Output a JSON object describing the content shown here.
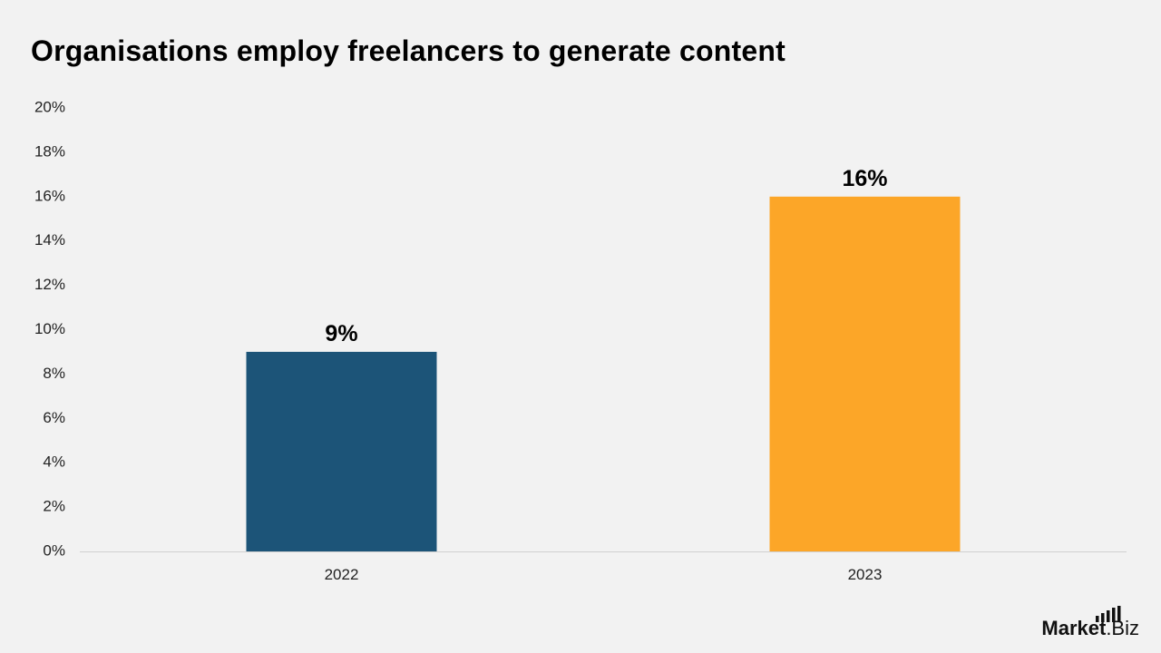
{
  "chart_data": {
    "type": "bar",
    "title": "Organisations employ freelancers to generate content",
    "categories": [
      "2022",
      "2023"
    ],
    "values": [
      9,
      16
    ],
    "data_labels": [
      "9%",
      "16%"
    ],
    "bar_colors": [
      "#1c5478",
      "#fca628"
    ],
    "ylim": [
      0,
      20
    ],
    "yticks": [
      0,
      2,
      4,
      6,
      8,
      10,
      12,
      14,
      16,
      18,
      20
    ],
    "ytick_suffix": "%",
    "xlabel": "",
    "ylabel": "",
    "grid": false
  },
  "branding": {
    "logo_bold": "Market",
    "logo_regular": ".Biz"
  }
}
